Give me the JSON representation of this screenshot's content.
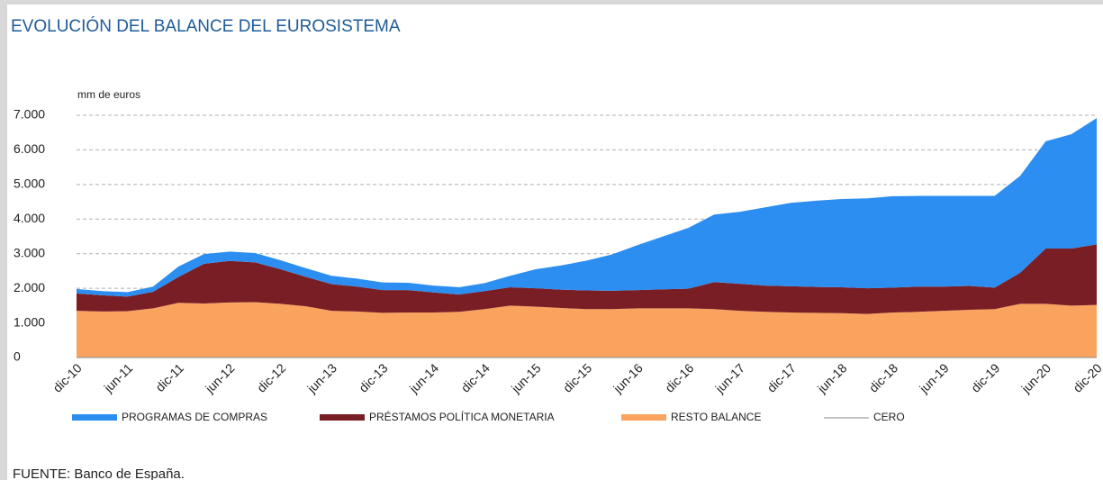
{
  "chart_data": {
    "type": "stacked_area",
    "title": "EVOLUCIÓN DEL BALANCE DEL EUROSISTEMA",
    "y_axis_label": "mm de euros",
    "source": "FUENTE: Banco de España.",
    "categories": [
      "dic-10",
      null,
      "jun-11",
      null,
      "dic-11",
      null,
      "jun-12",
      null,
      "dic-12",
      null,
      "jun-13",
      null,
      "dic-13",
      null,
      "jun-14",
      null,
      "dic-14",
      null,
      "jun-15",
      null,
      "dic-15",
      null,
      "jun-16",
      null,
      "dic-16",
      null,
      "jun-17",
      null,
      "dic-17",
      null,
      "jun-18",
      null,
      "dic-18",
      null,
      "jun-19",
      null,
      "dic-19",
      null,
      "jun-20",
      null,
      "dic-20"
    ],
    "series": [
      {
        "name": "PROGRAMAS DE COMPRAS",
        "color": "#2b8ef0",
        "values": [
          130,
          120,
          130,
          150,
          300,
          280,
          270,
          270,
          260,
          250,
          240,
          230,
          220,
          210,
          200,
          210,
          230,
          330,
          550,
          700,
          860,
          1050,
          1300,
          1530,
          1760,
          1950,
          2080,
          2260,
          2410,
          2490,
          2550,
          2600,
          2640,
          2620,
          2620,
          2600,
          2650,
          2800,
          3100,
          3300,
          3650
        ]
      },
      {
        "name": "PRÉSTAMOS POLÍTICA MONETARIA",
        "color": "#7a1e26",
        "values": [
          500,
          470,
          420,
          480,
          750,
          1150,
          1200,
          1150,
          1000,
          850,
          770,
          720,
          660,
          650,
          580,
          500,
          520,
          530,
          530,
          530,
          540,
          530,
          530,
          550,
          570,
          780,
          780,
          760,
          760,
          750,
          750,
          740,
          720,
          730,
          700,
          690,
          620,
          900,
          1600,
          1650,
          1750
        ]
      },
      {
        "name": "RESTO BALANCE",
        "color": "#f9a35e",
        "values": [
          1350,
          1330,
          1340,
          1420,
          1580,
          1560,
          1590,
          1600,
          1550,
          1480,
          1350,
          1330,
          1290,
          1300,
          1300,
          1320,
          1400,
          1500,
          1470,
          1430,
          1400,
          1400,
          1420,
          1420,
          1420,
          1400,
          1350,
          1320,
          1300,
          1290,
          1280,
          1260,
          1300,
          1320,
          1350,
          1380,
          1400,
          1550,
          1550,
          1500,
          1520
        ]
      }
    ],
    "reference_line": {
      "name": "CERO",
      "value": 0,
      "color": "#888888"
    },
    "ylim": [
      0,
      7000
    ],
    "yticks": [
      0,
      {
        "value": 1000,
        "label": "1.000"
      },
      {
        "value": 2000,
        "label": "2.000"
      },
      {
        "value": 3000,
        "label": "3.000"
      },
      {
        "value": 4000,
        "label": "4.000"
      },
      {
        "value": 5000,
        "label": "5.000"
      },
      {
        "value": 6000,
        "label": "6.000"
      },
      {
        "value": 7000,
        "label": "7.000"
      }
    ],
    "grid": true
  }
}
